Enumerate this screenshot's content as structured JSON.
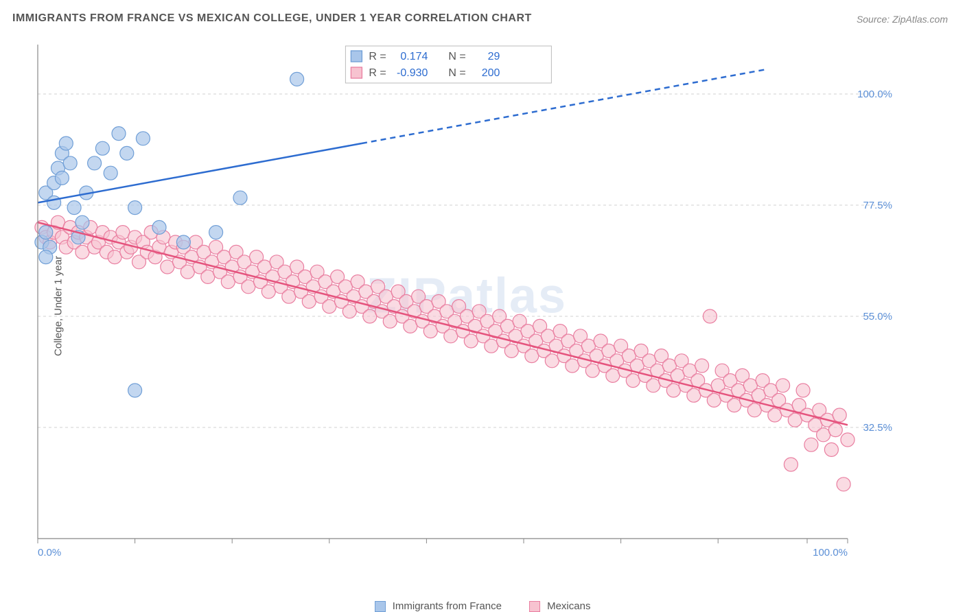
{
  "title": "IMMIGRANTS FROM FRANCE VS MEXICAN COLLEGE, UNDER 1 YEAR CORRELATION CHART",
  "source_label": "Source:",
  "source_value": "ZipAtlas.com",
  "ylabel": "College, Under 1 year",
  "watermark": "ZIPatlas",
  "chart": {
    "type": "scatter",
    "xlim": [
      0,
      100
    ],
    "ylim": [
      10,
      110
    ],
    "yticks": [
      32.5,
      55.0,
      77.5,
      100.0
    ],
    "ytick_labels": [
      "32.5%",
      "55.0%",
      "77.5%",
      "100.0%"
    ],
    "xticks": [
      0,
      12,
      24,
      36,
      48,
      60,
      72,
      84,
      95,
      100
    ],
    "xtick_labels_shown": {
      "0": "0.0%",
      "100": "100.0%"
    },
    "grid_color": "#d0d0d0",
    "axis_color": "#888888",
    "background_color": "#ffffff"
  },
  "series": {
    "france": {
      "label": "Immigrants from France",
      "marker_fill": "#a9c6ea",
      "marker_stroke": "#6f9ed6",
      "marker_opacity": 0.7,
      "marker_radius": 10,
      "line_color": "#2d6cd0",
      "line_width": 2.5,
      "trend_solid": {
        "x1": 0,
        "y1": 78,
        "x2": 40,
        "y2": 90
      },
      "trend_dashed": {
        "x1": 40,
        "y1": 90,
        "x2": 90,
        "y2": 105
      },
      "R_label": "R =",
      "R_value": "0.174",
      "N_label": "N =",
      "N_value": "29",
      "points": [
        [
          0.5,
          70
        ],
        [
          1,
          72
        ],
        [
          1,
          80
        ],
        [
          1.5,
          69
        ],
        [
          2,
          78
        ],
        [
          2,
          82
        ],
        [
          2.5,
          85
        ],
        [
          3,
          88
        ],
        [
          3,
          83
        ],
        [
          3.5,
          90
        ],
        [
          4,
          86
        ],
        [
          4.5,
          77
        ],
        [
          5,
          71
        ],
        [
          5.5,
          74
        ],
        [
          6,
          80
        ],
        [
          7,
          86
        ],
        [
          8,
          89
        ],
        [
          9,
          84
        ],
        [
          10,
          92
        ],
        [
          11,
          88
        ],
        [
          12,
          77
        ],
        [
          13,
          91
        ],
        [
          15,
          73
        ],
        [
          18,
          70
        ],
        [
          22,
          72
        ],
        [
          25,
          79
        ],
        [
          32,
          103
        ],
        [
          12,
          40
        ],
        [
          1,
          67
        ]
      ]
    },
    "mexicans": {
      "label": "Mexicans",
      "marker_fill": "#f7c3d0",
      "marker_stroke": "#e97ea0",
      "marker_opacity": 0.6,
      "marker_radius": 10,
      "line_color": "#e5537d",
      "line_width": 2.5,
      "trend_solid": {
        "x1": 0,
        "y1": 74,
        "x2": 100,
        "y2": 33
      },
      "R_label": "R =",
      "R_value": "-0.930",
      "N_label": "N =",
      "N_value": "200",
      "points": [
        [
          0.5,
          73
        ],
        [
          1,
          71
        ],
        [
          1.5,
          70
        ],
        [
          2,
          72
        ],
        [
          2.5,
          74
        ],
        [
          3,
          71
        ],
        [
          3.5,
          69
        ],
        [
          4,
          73
        ],
        [
          4.5,
          70
        ],
        [
          5,
          72
        ],
        [
          5.5,
          68
        ],
        [
          6,
          71
        ],
        [
          6.5,
          73
        ],
        [
          7,
          69
        ],
        [
          7.5,
          70
        ],
        [
          8,
          72
        ],
        [
          8.5,
          68
        ],
        [
          9,
          71
        ],
        [
          9.5,
          67
        ],
        [
          10,
          70
        ],
        [
          10.5,
          72
        ],
        [
          11,
          68
        ],
        [
          11.5,
          69
        ],
        [
          12,
          71
        ],
        [
          12.5,
          66
        ],
        [
          13,
          70
        ],
        [
          13.5,
          68
        ],
        [
          14,
          72
        ],
        [
          14.5,
          67
        ],
        [
          15,
          69
        ],
        [
          15.5,
          71
        ],
        [
          16,
          65
        ],
        [
          16.5,
          68
        ],
        [
          17,
          70
        ],
        [
          17.5,
          66
        ],
        [
          18,
          69
        ],
        [
          18.5,
          64
        ],
        [
          19,
          67
        ],
        [
          19.5,
          70
        ],
        [
          20,
          65
        ],
        [
          20.5,
          68
        ],
        [
          21,
          63
        ],
        [
          21.5,
          66
        ],
        [
          22,
          69
        ],
        [
          22.5,
          64
        ],
        [
          23,
          67
        ],
        [
          23.5,
          62
        ],
        [
          24,
          65
        ],
        [
          24.5,
          68
        ],
        [
          25,
          63
        ],
        [
          25.5,
          66
        ],
        [
          26,
          61
        ],
        [
          26.5,
          64
        ],
        [
          27,
          67
        ],
        [
          27.5,
          62
        ],
        [
          28,
          65
        ],
        [
          28.5,
          60
        ],
        [
          29,
          63
        ],
        [
          29.5,
          66
        ],
        [
          30,
          61
        ],
        [
          30.5,
          64
        ],
        [
          31,
          59
        ],
        [
          31.5,
          62
        ],
        [
          32,
          65
        ],
        [
          32.5,
          60
        ],
        [
          33,
          63
        ],
        [
          33.5,
          58
        ],
        [
          34,
          61
        ],
        [
          34.5,
          64
        ],
        [
          35,
          59
        ],
        [
          35.5,
          62
        ],
        [
          36,
          57
        ],
        [
          36.5,
          60
        ],
        [
          37,
          63
        ],
        [
          37.5,
          58
        ],
        [
          38,
          61
        ],
        [
          38.5,
          56
        ],
        [
          39,
          59
        ],
        [
          39.5,
          62
        ],
        [
          40,
          57
        ],
        [
          40.5,
          60
        ],
        [
          41,
          55
        ],
        [
          41.5,
          58
        ],
        [
          42,
          61
        ],
        [
          42.5,
          56
        ],
        [
          43,
          59
        ],
        [
          43.5,
          54
        ],
        [
          44,
          57
        ],
        [
          44.5,
          60
        ],
        [
          45,
          55
        ],
        [
          45.5,
          58
        ],
        [
          46,
          53
        ],
        [
          46.5,
          56
        ],
        [
          47,
          59
        ],
        [
          47.5,
          54
        ],
        [
          48,
          57
        ],
        [
          48.5,
          52
        ],
        [
          49,
          55
        ],
        [
          49.5,
          58
        ],
        [
          50,
          53
        ],
        [
          50.5,
          56
        ],
        [
          51,
          51
        ],
        [
          51.5,
          54
        ],
        [
          52,
          57
        ],
        [
          52.5,
          52
        ],
        [
          53,
          55
        ],
        [
          53.5,
          50
        ],
        [
          54,
          53
        ],
        [
          54.5,
          56
        ],
        [
          55,
          51
        ],
        [
          55.5,
          54
        ],
        [
          56,
          49
        ],
        [
          56.5,
          52
        ],
        [
          57,
          55
        ],
        [
          57.5,
          50
        ],
        [
          58,
          53
        ],
        [
          58.5,
          48
        ],
        [
          59,
          51
        ],
        [
          59.5,
          54
        ],
        [
          60,
          49
        ],
        [
          60.5,
          52
        ],
        [
          61,
          47
        ],
        [
          61.5,
          50
        ],
        [
          62,
          53
        ],
        [
          62.5,
          48
        ],
        [
          63,
          51
        ],
        [
          63.5,
          46
        ],
        [
          64,
          49
        ],
        [
          64.5,
          52
        ],
        [
          65,
          47
        ],
        [
          65.5,
          50
        ],
        [
          66,
          45
        ],
        [
          66.5,
          48
        ],
        [
          67,
          51
        ],
        [
          67.5,
          46
        ],
        [
          68,
          49
        ],
        [
          68.5,
          44
        ],
        [
          69,
          47
        ],
        [
          69.5,
          50
        ],
        [
          70,
          45
        ],
        [
          70.5,
          48
        ],
        [
          71,
          43
        ],
        [
          71.5,
          46
        ],
        [
          72,
          49
        ],
        [
          72.5,
          44
        ],
        [
          73,
          47
        ],
        [
          73.5,
          42
        ],
        [
          74,
          45
        ],
        [
          74.5,
          48
        ],
        [
          75,
          43
        ],
        [
          75.5,
          46
        ],
        [
          76,
          41
        ],
        [
          76.5,
          44
        ],
        [
          77,
          47
        ],
        [
          77.5,
          42
        ],
        [
          78,
          45
        ],
        [
          78.5,
          40
        ],
        [
          79,
          43
        ],
        [
          79.5,
          46
        ],
        [
          80,
          41
        ],
        [
          80.5,
          44
        ],
        [
          81,
          39
        ],
        [
          81.5,
          42
        ],
        [
          82,
          45
        ],
        [
          82.5,
          40
        ],
        [
          83,
          55
        ],
        [
          83.5,
          38
        ],
        [
          84,
          41
        ],
        [
          84.5,
          44
        ],
        [
          85,
          39
        ],
        [
          85.5,
          42
        ],
        [
          86,
          37
        ],
        [
          86.5,
          40
        ],
        [
          87,
          43
        ],
        [
          87.5,
          38
        ],
        [
          88,
          41
        ],
        [
          88.5,
          36
        ],
        [
          89,
          39
        ],
        [
          89.5,
          42
        ],
        [
          90,
          37
        ],
        [
          90.5,
          40
        ],
        [
          91,
          35
        ],
        [
          91.5,
          38
        ],
        [
          92,
          41
        ],
        [
          92.5,
          36
        ],
        [
          93,
          25
        ],
        [
          93.5,
          34
        ],
        [
          94,
          37
        ],
        [
          94.5,
          40
        ],
        [
          95,
          35
        ],
        [
          95.5,
          29
        ],
        [
          96,
          33
        ],
        [
          96.5,
          36
        ],
        [
          97,
          31
        ],
        [
          97.5,
          34
        ],
        [
          98,
          28
        ],
        [
          98.5,
          32
        ],
        [
          99,
          35
        ],
        [
          99.5,
          21
        ],
        [
          100,
          30
        ]
      ]
    }
  },
  "legend_box": {
    "background": "#ffffff",
    "border_color": "#bbbbbb",
    "text_color": "#555555",
    "value_color": "#2d6cd0"
  },
  "bottom_legend": {
    "france_swatch_fill": "#a9c6ea",
    "france_swatch_stroke": "#6f9ed6",
    "mexicans_swatch_fill": "#f7c3d0",
    "mexicans_swatch_stroke": "#e97ea0"
  }
}
